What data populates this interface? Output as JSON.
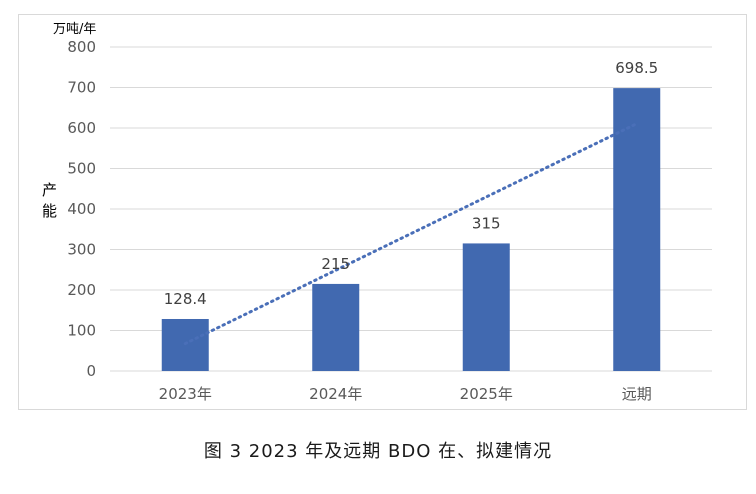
{
  "chart_data": {
    "type": "bar",
    "categories": [
      "2023年",
      "2024年",
      "2025年",
      "远期"
    ],
    "values": [
      128.4,
      215,
      315,
      698.5
    ],
    "data_labels": [
      "128.4",
      "215",
      "315",
      "698.5"
    ],
    "ylabel": "产能",
    "y_unit": "万吨/年",
    "ylim": [
      0,
      800
    ],
    "yticks": [
      "0",
      "100",
      "200",
      "300",
      "400",
      "500",
      "600",
      "700",
      "800"
    ],
    "trendline": "linear",
    "grid": true,
    "legend": "none",
    "colors": {
      "bar": "#4169b0",
      "trendline": "#4a6fb8",
      "grid": "#d9d9d9"
    }
  },
  "caption": "图 3  2023 年及远期 BDO 在、拟建情况"
}
